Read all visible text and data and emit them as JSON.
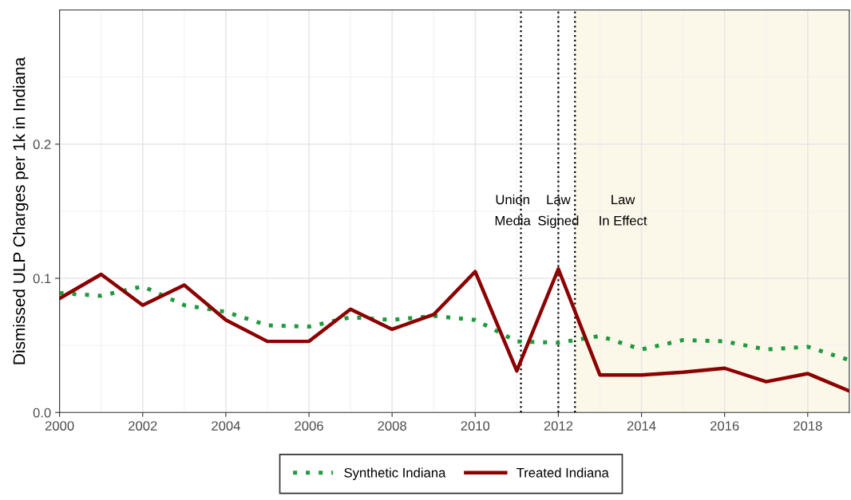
{
  "chart_data": {
    "type": "line",
    "ylabel": "Dismissed ULP Charges per 1k in Indiana",
    "x": [
      2000,
      2001,
      2002,
      2003,
      2004,
      2005,
      2006,
      2007,
      2008,
      2009,
      2010,
      2011,
      2012,
      2013,
      2014,
      2015,
      2016,
      2017,
      2018,
      2019
    ],
    "series": [
      {
        "name": "Synthetic Indiana",
        "color": "#1f9a3c",
        "line_style": "dotted",
        "values": [
          0.089,
          0.087,
          0.094,
          0.08,
          0.075,
          0.065,
          0.064,
          0.071,
          0.069,
          0.072,
          0.069,
          0.053,
          0.052,
          0.057,
          0.047,
          0.054,
          0.053,
          0.047,
          0.049,
          0.039
        ]
      },
      {
        "name": "Treated Indiana",
        "color": "#8b0000",
        "line_style": "solid",
        "values": [
          0.085,
          0.103,
          0.08,
          0.095,
          0.069,
          0.053,
          0.053,
          0.077,
          0.062,
          0.073,
          0.105,
          0.031,
          0.107,
          0.028,
          0.028,
          0.03,
          0.033,
          0.023,
          0.029,
          0.016
        ]
      }
    ],
    "xlim": [
      2000,
      2019
    ],
    "xticks": [
      2000,
      2002,
      2004,
      2006,
      2008,
      2010,
      2012,
      2014,
      2016,
      2018
    ],
    "ylim": [
      0,
      0.3
    ],
    "yticks": [
      {
        "value": 0,
        "label": "0.0"
      },
      0.1,
      0.2
    ],
    "ref_lines": [
      {
        "axis": "x",
        "value": 2011.1,
        "label": "Union\nMedia",
        "line_style": "dotted",
        "color": "#000000"
      },
      {
        "axis": "x",
        "value": 2012,
        "label": "Law\nSigned",
        "line_style": "dotted",
        "color": "#000000"
      },
      {
        "axis": "x",
        "value": 2012.4,
        "line_style": "dotted",
        "color": "#000000"
      }
    ],
    "bands": [
      {
        "axis": "x",
        "from": 2012.4,
        "to": 2019,
        "label": "Law\nIn Effect",
        "color": "#fbf6e2"
      }
    ],
    "grid": true,
    "legend": "bottom",
    "marker": "none"
  }
}
